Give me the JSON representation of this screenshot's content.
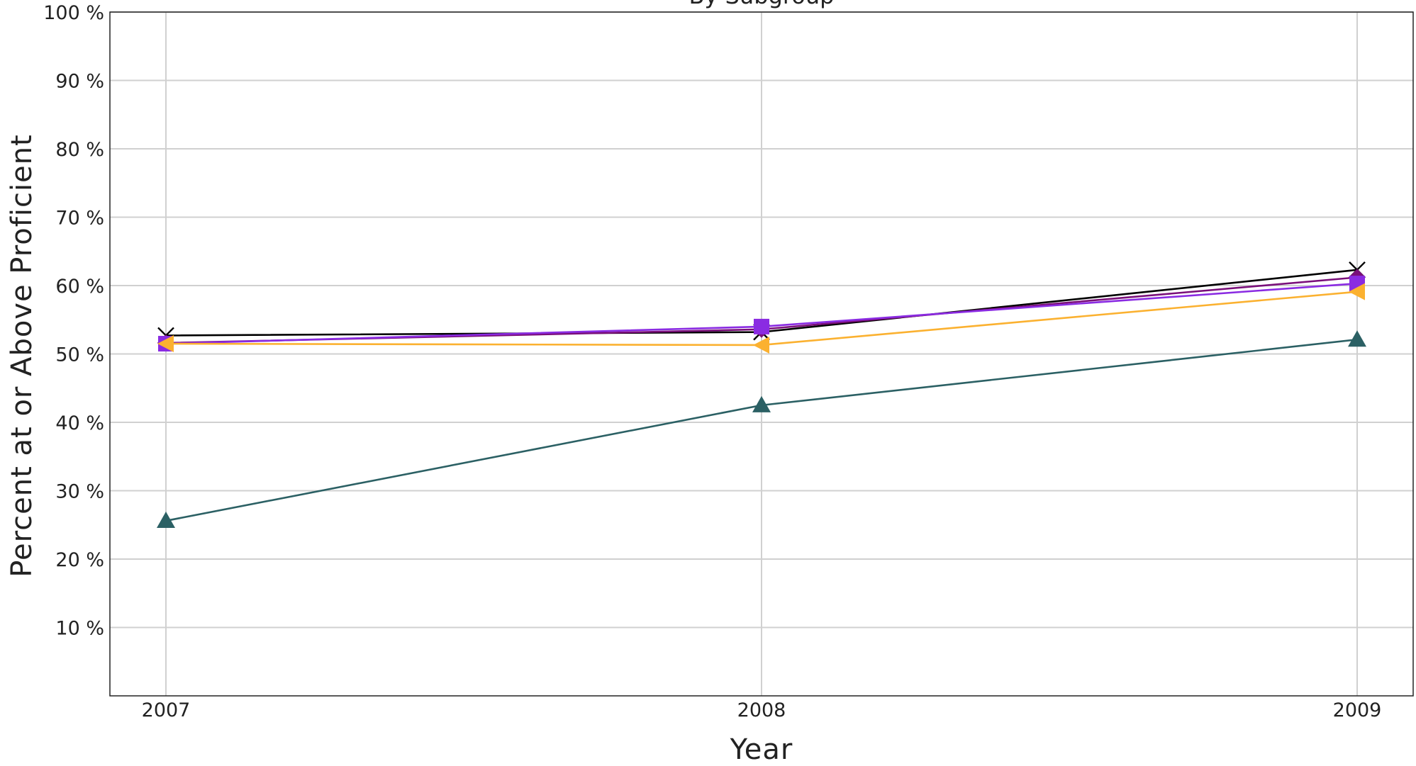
{
  "chart_data": {
    "type": "line",
    "title": "By Subgroup",
    "xlabel": "Year",
    "ylabel": "Percent at or Above Proficient",
    "categories": [
      "2007",
      "2008",
      "2009"
    ],
    "y_ticks": [
      "10 %",
      "20 %",
      "30 %",
      "40 %",
      "50 %",
      "60 %",
      "70 %",
      "80 %",
      "90 %",
      "100 %"
    ],
    "ylim": [
      0,
      100
    ],
    "grid": true,
    "legend": "none",
    "series": [
      {
        "values": [
          52.7,
          53.2,
          62.3
        ],
        "color": "#000000",
        "marker": "x"
      },
      {
        "values": [
          51.6,
          53.6,
          61.2
        ],
        "color": "#7a0f7a",
        "marker": "diamond"
      },
      {
        "values": [
          51.5,
          54.0,
          60.3
        ],
        "color": "#8a2be2",
        "marker": "square"
      },
      {
        "values": [
          51.5,
          51.3,
          59.1
        ],
        "color": "#fbb130",
        "marker": "triangle-left"
      },
      {
        "values": [
          25.6,
          42.5,
          52.1
        ],
        "color": "#2b6064",
        "marker": "triangle-up"
      }
    ]
  }
}
